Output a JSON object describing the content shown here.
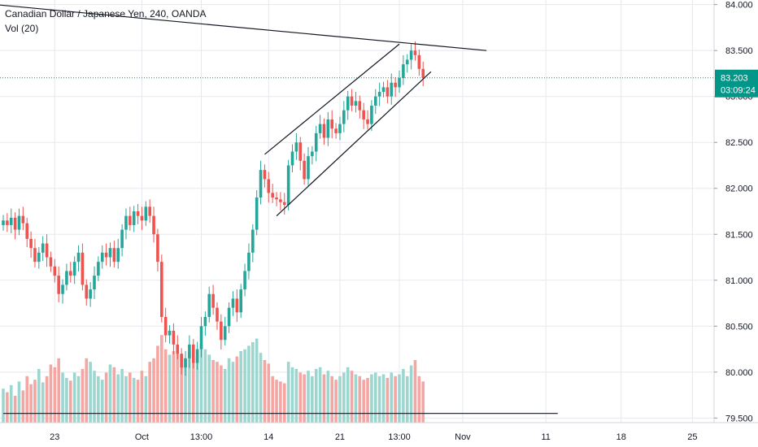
{
  "legend": {
    "symbol_line": "Canadian Dollar / Japanese Yen, 240, OANDA",
    "volume_line": "Vol (20)"
  },
  "price_badge": {
    "price": "83.203",
    "countdown": "03:09:24"
  },
  "colors": {
    "up": "#26a69a",
    "down": "#ef5350",
    "vol_up": "#9dd6cf",
    "vol_down": "#f5a5a2",
    "price_line": "#009688",
    "grid": "#e6e8ee",
    "axis_text": "#131722"
  },
  "chart_data": {
    "type": "candlestick",
    "y_axis": {
      "ylim": [
        79.45,
        84.05
      ],
      "ticks": [
        "84.000",
        "83.500",
        "83.000",
        "82.500",
        "82.000",
        "81.500",
        "81.000",
        "80.500",
        "80.000",
        "79.500"
      ],
      "tick_values": [
        84.0,
        83.5,
        83.0,
        82.5,
        82.0,
        81.5,
        81.0,
        80.5,
        80.0,
        79.5
      ]
    },
    "x_axis": {
      "ticks": [
        {
          "label": "23",
          "bar": 13
        },
        {
          "label": "Oct",
          "bar": 35
        },
        {
          "label": "13:00",
          "bar": 50
        },
        {
          "label": "14",
          "bar": 67
        },
        {
          "label": "21",
          "bar": 85
        },
        {
          "label": "13:00",
          "bar": 100
        },
        {
          "label": "Nov",
          "bar": 116
        },
        {
          "label": "11",
          "bar": 137
        },
        {
          "label": "18",
          "bar": 156
        },
        {
          "label": "25",
          "bar": 174
        }
      ]
    },
    "last_price": 83.203,
    "closes": [
      81.65,
      81.6,
      81.68,
      81.55,
      81.7,
      81.62,
      81.45,
      81.35,
      81.2,
      81.3,
      81.4,
      81.25,
      81.15,
      81.05,
      80.85,
      80.95,
      81.1,
      81.05,
      81.2,
      81.3,
      80.95,
      80.8,
      80.9,
      81.05,
      81.2,
      81.3,
      81.25,
      81.35,
      81.2,
      81.35,
      81.55,
      81.7,
      81.6,
      81.75,
      81.7,
      81.65,
      81.8,
      81.7,
      81.5,
      81.2,
      80.6,
      80.4,
      80.45,
      80.3,
      80.2,
      80.05,
      80.15,
      80.3,
      80.1,
      80.25,
      80.5,
      80.6,
      80.85,
      80.7,
      80.55,
      80.35,
      80.5,
      80.7,
      80.8,
      80.65,
      80.9,
      81.1,
      81.3,
      81.55,
      81.9,
      82.2,
      82.1,
      81.95,
      81.9,
      81.88,
      81.85,
      81.82,
      82.25,
      82.4,
      82.5,
      82.3,
      82.1,
      82.35,
      82.4,
      82.6,
      82.7,
      82.55,
      82.75,
      82.65,
      82.6,
      82.7,
      82.85,
      83.0,
      82.9,
      82.95,
      82.85,
      82.75,
      82.7,
      82.9,
      83.0,
      83.05,
      83.1,
      83.0,
      83.15,
      83.1,
      83.2,
      83.35,
      83.4,
      83.5,
      83.45,
      83.3,
      83.203
    ],
    "volumes": [
      380,
      340,
      420,
      300,
      460,
      360,
      520,
      430,
      480,
      600,
      450,
      520,
      650,
      620,
      720,
      560,
      500,
      470,
      560,
      520,
      600,
      720,
      680,
      580,
      520,
      480,
      560,
      650,
      620,
      540,
      600,
      520,
      560,
      500,
      480,
      580,
      520,
      680,
      720,
      860,
      980,
      820,
      760,
      800,
      850,
      760,
      720,
      780,
      680,
      740,
      880,
      820,
      760,
      700,
      680,
      640,
      600,
      720,
      680,
      740,
      800,
      820,
      860,
      900,
      940,
      780,
      700,
      660,
      520,
      480,
      460,
      440,
      680,
      620,
      600,
      560,
      540,
      580,
      520,
      600,
      620,
      540,
      580,
      520,
      480,
      520,
      560,
      620,
      580,
      540,
      520,
      480,
      500,
      540,
      560,
      520,
      540,
      500,
      560,
      520,
      540,
      600,
      520,
      640,
      700,
      520,
      460
    ]
  }
}
